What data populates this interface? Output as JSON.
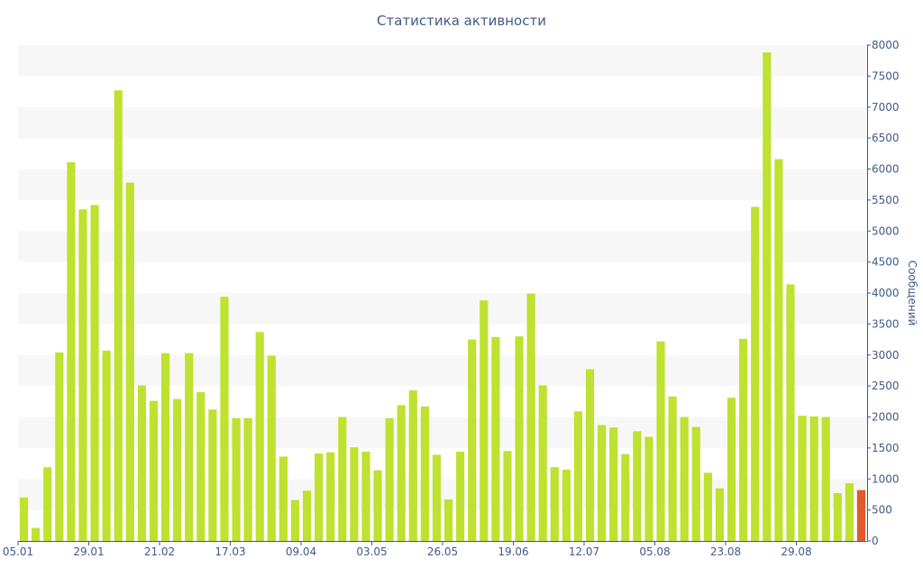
{
  "chart_data": {
    "type": "bar",
    "title": "Статистика активности",
    "ylabel": "Сообщений",
    "xlabel": "",
    "ylim": [
      0,
      8000
    ],
    "y_ticks": [
      0,
      500,
      1000,
      1500,
      2000,
      2500,
      3000,
      3500,
      4000,
      4500,
      5000,
      5500,
      6000,
      6500,
      7000,
      7500,
      8000
    ],
    "y_axis_side": "right",
    "x_tick_labels": [
      {
        "index": 0,
        "label": "05.01"
      },
      {
        "index": 6,
        "label": "29.01"
      },
      {
        "index": 12,
        "label": "21.02"
      },
      {
        "index": 18,
        "label": "17.03"
      },
      {
        "index": 24,
        "label": "09.04"
      },
      {
        "index": 30,
        "label": "03.05"
      },
      {
        "index": 36,
        "label": "26.05"
      },
      {
        "index": 42,
        "label": "19.06"
      },
      {
        "index": 48,
        "label": "12.07"
      },
      {
        "index": 54,
        "label": "05.08"
      },
      {
        "index": 60,
        "label": "23.08"
      },
      {
        "index": 66,
        "label": "29.08"
      }
    ],
    "grid": "alternating horizontal bands",
    "colors": {
      "bar": "#bfe12f",
      "highlight": "#e05a2b",
      "axis": "#3f5a8a",
      "band": "#f7f7f7"
    },
    "series": [
      {
        "values": [
          700,
          210,
          1190,
          3040,
          6110,
          5350,
          5420,
          3070,
          7270,
          5780,
          2510,
          2260,
          3030,
          2290,
          3030,
          2400,
          2120,
          3940,
          1980,
          1980,
          3370,
          2990,
          1360,
          660,
          810,
          1410,
          1430,
          2000,
          1510,
          1440,
          1140,
          1980,
          2190,
          2430,
          2170,
          1390,
          670,
          1440,
          3250,
          3880,
          3290,
          1450,
          3300,
          3990,
          2510,
          1190,
          1150,
          2090,
          2770,
          1870,
          1830,
          1400,
          1770,
          1680,
          3220,
          2330,
          2000,
          1840,
          1100,
          850,
          2310,
          3260,
          5390,
          7880,
          6160,
          4140,
          2020,
          2010,
          2000,
          770,
          930,
          820
        ]
      }
    ],
    "highlight_index": 71
  }
}
